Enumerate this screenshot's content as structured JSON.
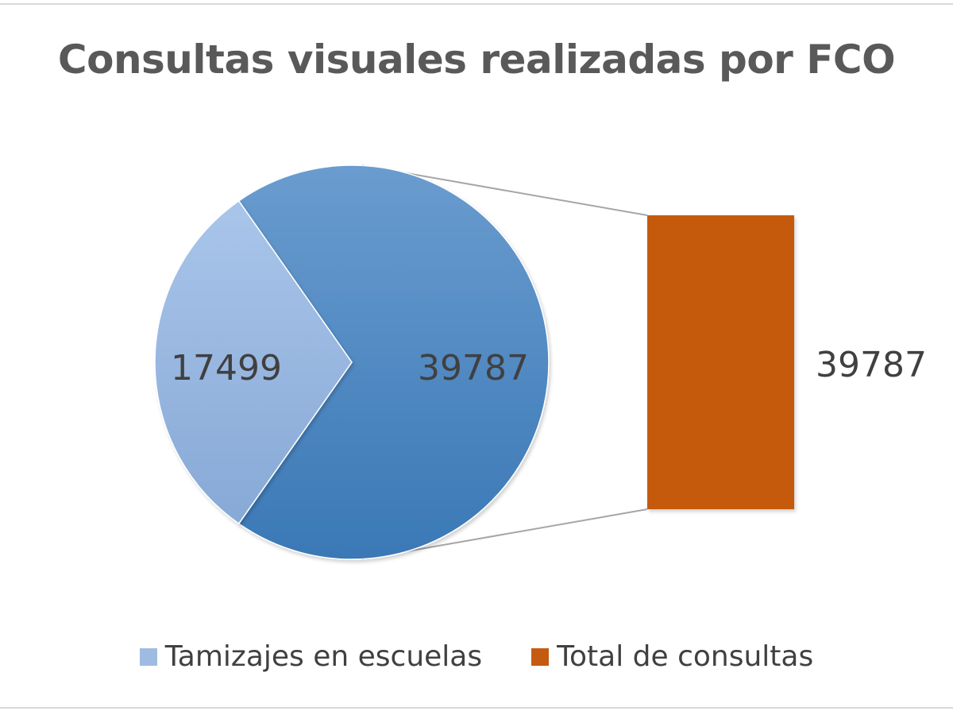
{
  "chart_data": {
    "type": "pie",
    "subtype": "bar-of-pie",
    "title": "Consultas visuales realizadas por FCO",
    "slices": [
      {
        "name": "Tamizajes en escuelas",
        "value": 17499,
        "label": "17499",
        "color": "#9ebbe2"
      },
      {
        "name": "Total de consultas",
        "value": 39787,
        "label": "39787",
        "color": "#4a86c4"
      }
    ],
    "bar": {
      "name": "Total de consultas",
      "value": 39787,
      "label": "39787",
      "color": "#c55a11"
    },
    "legend": {
      "placement": "bottom",
      "items": [
        {
          "label": "Tamizajes en escuelas",
          "color": "#9ebbe2"
        },
        {
          "label": "Total de consultas",
          "color": "#c55a11"
        }
      ]
    }
  }
}
